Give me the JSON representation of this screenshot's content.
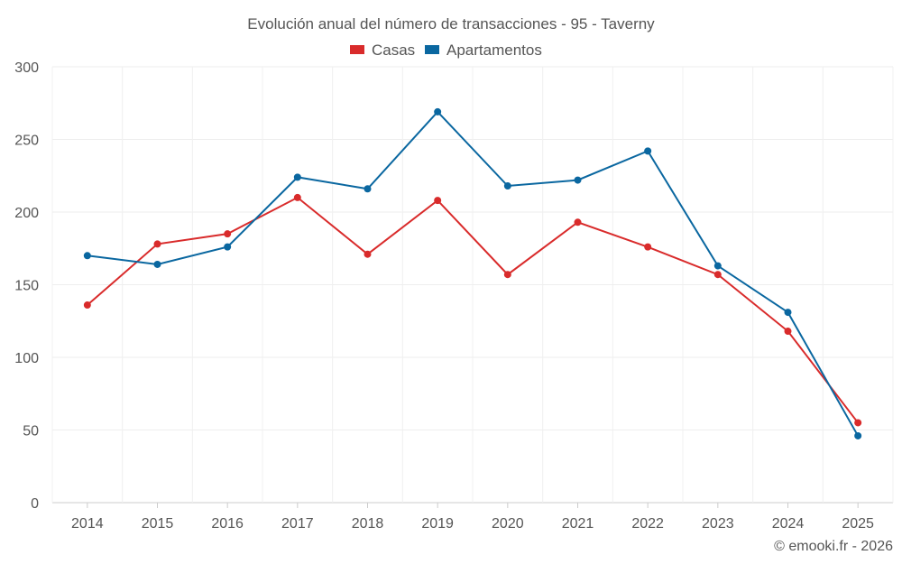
{
  "chart_data": {
    "type": "line",
    "title": "Evolución anual del número de transacciones - 95 - Taverny",
    "categories": [
      "2014",
      "2015",
      "2016",
      "2017",
      "2018",
      "2019",
      "2020",
      "2021",
      "2022",
      "2023",
      "2024",
      "2025"
    ],
    "series": [
      {
        "name": "Casas",
        "color": "#d92b2b",
        "values": [
          136,
          178,
          185,
          210,
          171,
          208,
          157,
          193,
          176,
          157,
          118,
          55
        ]
      },
      {
        "name": "Apartamentos",
        "color": "#0a67a0",
        "values": [
          170,
          164,
          176,
          224,
          216,
          269,
          218,
          222,
          242,
          163,
          131,
          46
        ]
      }
    ],
    "ylim": [
      0,
      300
    ],
    "yticks": [
      0,
      50,
      100,
      150,
      200,
      250,
      300
    ],
    "grid": true,
    "legend": "top-center",
    "xlabel": "",
    "ylabel": ""
  },
  "credit": "© emooki.fr - 2026"
}
